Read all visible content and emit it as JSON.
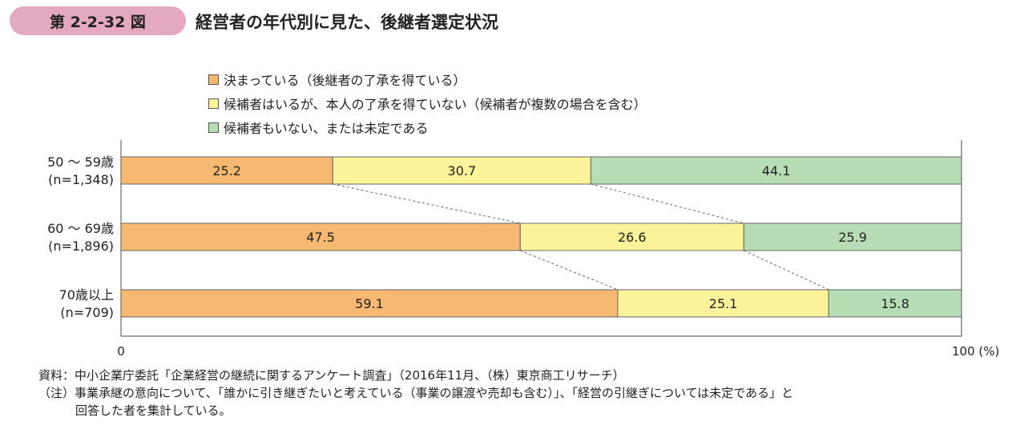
{
  "figure": {
    "number": "第 2-2-32 図",
    "title": "経営者の年代別に見た、後継者選定状況"
  },
  "notes": {
    "source": "資料：中小企業庁委託「企業経営の継続に関するアンケート調査」（2016年11月、（株）東京商工リサーチ）",
    "note_line1": "（注）事業承継の意向について、「誰かに引き継ぎたいと考えている（事業の譲渡や売却も含む）」、「経営の引継ぎについては未定である」と",
    "note_line2": "回答した者を集計している。"
  },
  "chart_data": {
    "type": "bar",
    "orientation": "horizontal",
    "stacked": true,
    "categories": [
      {
        "label": "50 ～ 59歳",
        "n": "(n=1,348)"
      },
      {
        "label": "60 ～ 69歳",
        "n": "(n=1,896)"
      },
      {
        "label": "70歳以上",
        "n": "(n=709)"
      }
    ],
    "series": [
      {
        "name": "決まっている（後継者の了承を得ている）",
        "color": "#f7b871",
        "values": [
          25.2,
          47.5,
          59.1
        ]
      },
      {
        "name": "候補者はいるが、本人の了承を得ていない（候補者が複数の場合を含む）",
        "color": "#fdf39a",
        "values": [
          30.7,
          26.6,
          25.1
        ]
      },
      {
        "name": "候補者もいない、または未定である",
        "color": "#b7ddb5",
        "values": [
          44.1,
          25.9,
          15.8
        ]
      }
    ],
    "xlim": [
      0,
      100
    ],
    "x_tick_labels": [
      "0",
      "100 (%)"
    ],
    "connector_lines": "dashed",
    "legend_position": "top"
  }
}
